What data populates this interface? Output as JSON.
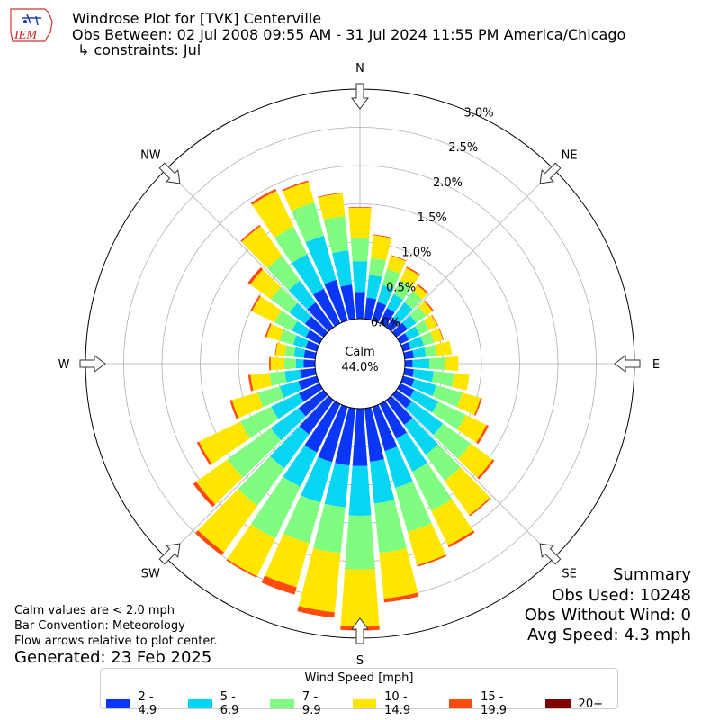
{
  "logo": {
    "text": "IEM"
  },
  "header": {
    "line1": "Windrose Plot for [TVK] Centerville",
    "line2": "Obs Between: 02 Jul 2008 09:55 AM - 31 Jul 2024 11:55 PM America/Chicago",
    "line3": "↳ constraints: Jul"
  },
  "notes": {
    "calm": "Calm values are < 2.0 mph",
    "convention": "Bar Convention: Meteorology",
    "arrows": "Flow arrows relative to plot center.",
    "generated": "Generated: 23 Feb 2025"
  },
  "summary": {
    "title": "Summary",
    "obs_used": "Obs Used: 10248",
    "obs_without_wind": "Obs Without Wind: 0",
    "avg_speed": "Avg Speed: 4.3 mph"
  },
  "legend": {
    "title": "Wind Speed [mph]",
    "items": [
      {
        "label": "2 - 4.9",
        "color": "#0a36f8"
      },
      {
        "label": "5 - 6.9",
        "color": "#06d6f2"
      },
      {
        "label": "7 - 9.9",
        "color": "#80fc80"
      },
      {
        "label": "10 - 14.9",
        "color": "#ffe600"
      },
      {
        "label": "15 - 19.9",
        "color": "#ff4a10"
      },
      {
        "label": "20+",
        "color": "#7f0000"
      }
    ]
  },
  "chart_data": {
    "type": "windrose",
    "calm_label": "Calm",
    "calm_value": "44.0%",
    "r_ticks": [
      "0.0%",
      "0.5%",
      "1.0%",
      "1.5%",
      "2.0%",
      "2.5%",
      "3.0%"
    ],
    "r_max": 3.0,
    "compass_labels": [
      "N",
      "NE",
      "E",
      "SE",
      "S",
      "SW",
      "W",
      "NW"
    ],
    "series_names": [
      "2 - 4.9",
      "5 - 6.9",
      "7 - 9.9",
      "10 - 14.9",
      "15 - 19.9",
      "20+"
    ],
    "directions_deg": [
      0,
      10,
      20,
      30,
      40,
      50,
      60,
      70,
      80,
      90,
      100,
      110,
      120,
      130,
      140,
      150,
      160,
      170,
      180,
      190,
      200,
      210,
      220,
      230,
      240,
      250,
      260,
      270,
      280,
      290,
      300,
      310,
      320,
      330,
      340,
      350
    ],
    "cumulative_percent": [
      [
        0.35,
        0.75,
        1.05,
        1.45,
        1.46,
        1.46
      ],
      [
        0.28,
        0.58,
        0.8,
        1.1,
        1.11,
        1.11
      ],
      [
        0.25,
        0.48,
        0.7,
        0.88,
        0.89,
        0.89
      ],
      [
        0.22,
        0.42,
        0.62,
        0.8,
        0.82,
        0.82
      ],
      [
        0.15,
        0.4,
        0.58,
        0.68,
        0.7,
        0.7
      ],
      [
        0.18,
        0.32,
        0.48,
        0.58,
        0.6,
        0.6
      ],
      [
        0.12,
        0.28,
        0.42,
        0.54,
        0.55,
        0.55
      ],
      [
        0.1,
        0.28,
        0.42,
        0.54,
        0.55,
        0.55
      ],
      [
        0.12,
        0.28,
        0.42,
        0.62,
        0.62,
        0.62
      ],
      [
        0.1,
        0.32,
        0.52,
        0.7,
        0.7,
        0.7
      ],
      [
        0.12,
        0.38,
        0.65,
        0.85,
        0.85,
        0.85
      ],
      [
        0.15,
        0.45,
        0.8,
        1.05,
        1.07,
        1.07
      ],
      [
        0.2,
        0.55,
        0.95,
        1.25,
        1.28,
        1.28
      ],
      [
        0.25,
        0.75,
        1.2,
        1.55,
        1.58,
        1.58
      ],
      [
        0.4,
        0.88,
        1.3,
        1.85,
        1.87,
        1.87
      ],
      [
        0.5,
        0.98,
        1.55,
        2.05,
        2.08,
        2.08
      ],
      [
        0.6,
        1.1,
        1.7,
        2.15,
        2.17,
        2.17
      ],
      [
        0.7,
        1.25,
        1.9,
        2.5,
        2.55,
        2.55
      ],
      [
        0.75,
        1.4,
        2.1,
        2.85,
        2.9,
        2.9
      ],
      [
        0.75,
        1.3,
        1.9,
        2.68,
        2.75,
        2.75
      ],
      [
        0.75,
        1.3,
        1.85,
        2.45,
        2.55,
        2.55
      ],
      [
        0.7,
        1.2,
        1.95,
        2.5,
        2.52,
        2.52
      ],
      [
        0.55,
        1.1,
        1.7,
        2.45,
        2.5,
        2.5
      ],
      [
        0.4,
        0.85,
        1.55,
        2.05,
        2.1,
        2.1
      ],
      [
        0.3,
        0.7,
        1.15,
        1.75,
        1.78,
        1.78
      ],
      [
        0.25,
        0.5,
        0.8,
        1.15,
        1.18,
        1.18
      ],
      [
        0.2,
        0.4,
        0.6,
        0.85,
        0.88,
        0.88
      ],
      [
        0.15,
        0.25,
        0.4,
        0.58,
        0.6,
        0.6
      ],
      [
        0.15,
        0.28,
        0.4,
        0.52,
        0.53,
        0.53
      ],
      [
        0.15,
        0.32,
        0.5,
        0.68,
        0.7,
        0.7
      ],
      [
        0.2,
        0.4,
        0.65,
        0.98,
        1.0,
        1.0
      ],
      [
        0.3,
        0.55,
        0.85,
        1.18,
        1.22,
        1.22
      ],
      [
        0.4,
        0.75,
        1.15,
        1.63,
        1.65,
        1.65
      ],
      [
        0.5,
        1.0,
        1.4,
        1.92,
        1.95,
        1.95
      ],
      [
        0.55,
        1.15,
        1.6,
        1.88,
        1.9,
        1.9
      ],
      [
        0.45,
        0.9,
        1.35,
        1.65,
        1.66,
        1.66
      ]
    ]
  }
}
